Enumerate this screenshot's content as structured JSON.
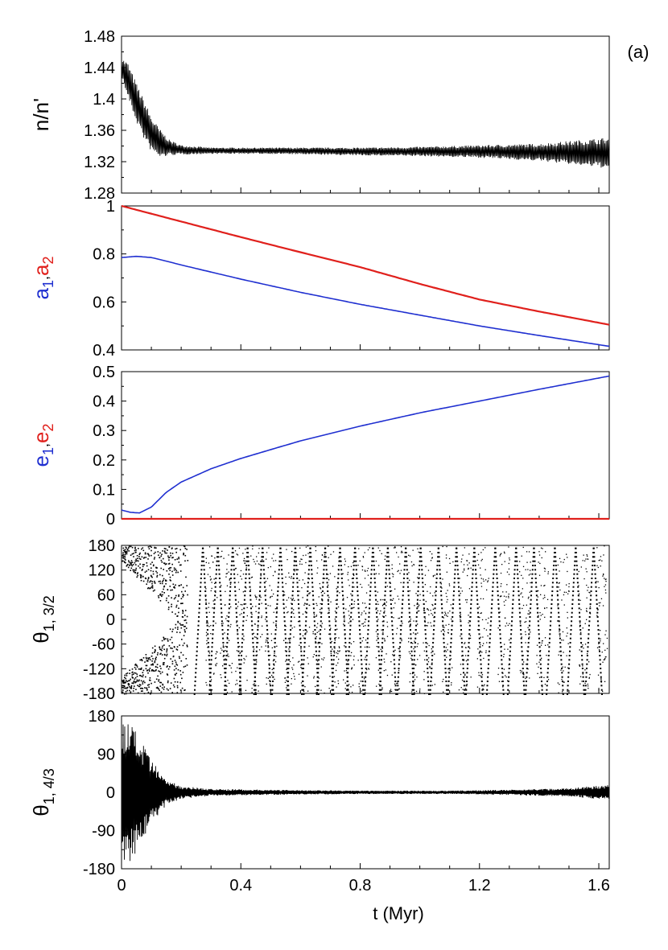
{
  "panel_label": "(a)",
  "x_axis": {
    "label": "t (Myr)",
    "ticks": [
      "0",
      "0.4",
      "0.8",
      "1.2",
      "1.6"
    ]
  },
  "colors": {
    "ink": "#000000",
    "blue": "#1f2fd0",
    "red": "#e0201c"
  },
  "chart_data": [
    {
      "type": "line",
      "ylabel": "n/n'",
      "ylim": [
        1.28,
        1.48
      ],
      "xlim": [
        0,
        1.635
      ],
      "yticks": [
        "1.28",
        "1.32",
        "1.36",
        "1.4",
        "1.44",
        "1.48"
      ],
      "series": [
        {
          "color": "#000000",
          "style": "dense-oscillation",
          "x": [
            0,
            0.02,
            0.05,
            0.08,
            0.1,
            0.13,
            0.16,
            0.2,
            0.3,
            0.5,
            0.8,
            1.0,
            1.2,
            1.4,
            1.635
          ],
          "center": [
            1.44,
            1.425,
            1.395,
            1.37,
            1.355,
            1.343,
            1.338,
            1.335,
            1.334,
            1.334,
            1.333,
            1.333,
            1.333,
            1.332,
            1.331
          ],
          "amplitude": [
            0.012,
            0.022,
            0.025,
            0.025,
            0.022,
            0.018,
            0.01,
            0.006,
            0.004,
            0.004,
            0.005,
            0.006,
            0.008,
            0.011,
            0.02
          ]
        }
      ]
    },
    {
      "type": "line",
      "ylabel": "a1,a2",
      "ylim": [
        0.4,
        1.0
      ],
      "xlim": [
        0,
        1.635
      ],
      "yticks": [
        "0.4",
        "0.6",
        "0.8",
        "1"
      ],
      "series": [
        {
          "name": "a1",
          "color": "#1f2fd0",
          "x": [
            0,
            0.05,
            0.1,
            0.15,
            0.2,
            0.4,
            0.6,
            0.8,
            1.0,
            1.2,
            1.4,
            1.635
          ],
          "y": [
            0.785,
            0.79,
            0.785,
            0.77,
            0.754,
            0.695,
            0.64,
            0.59,
            0.545,
            0.5,
            0.46,
            0.415
          ]
        },
        {
          "name": "a2",
          "color": "#e0201c",
          "x": [
            0,
            0.2,
            0.4,
            0.6,
            0.8,
            1.0,
            1.2,
            1.4,
            1.635
          ],
          "y": [
            1.0,
            0.935,
            0.87,
            0.807,
            0.745,
            0.675,
            0.61,
            0.56,
            0.505
          ]
        }
      ]
    },
    {
      "type": "line",
      "ylabel": "e1,e2",
      "ylim": [
        0,
        0.5
      ],
      "xlim": [
        0,
        1.635
      ],
      "yticks": [
        "0",
        "0.1",
        "0.2",
        "0.3",
        "0.4",
        "0.5"
      ],
      "series": [
        {
          "name": "e1",
          "color": "#1f2fd0",
          "x": [
            0,
            0.03,
            0.06,
            0.1,
            0.15,
            0.2,
            0.3,
            0.4,
            0.6,
            0.8,
            1.0,
            1.2,
            1.4,
            1.635
          ],
          "y": [
            0.03,
            0.022,
            0.02,
            0.04,
            0.09,
            0.125,
            0.17,
            0.205,
            0.265,
            0.315,
            0.36,
            0.4,
            0.44,
            0.485
          ]
        },
        {
          "name": "e2",
          "color": "#e0201c",
          "x": [
            0,
            1.635
          ],
          "y": [
            0.0,
            0.0
          ]
        }
      ]
    },
    {
      "type": "scatter",
      "ylabel": "θ1, 3/2",
      "ylim": [
        -180,
        180
      ],
      "xlim": [
        0,
        1.635
      ],
      "yticks": [
        "-180",
        "-120",
        "-60",
        "0",
        "60",
        "120",
        "180"
      ],
      "series": [
        {
          "color": "#000000",
          "style": "circulating-angle-dots",
          "x": [
            0,
            0.2,
            0.4,
            0.6,
            0.8,
            1.0,
            1.2,
            1.4,
            1.635
          ],
          "y": [
            180,
            -180,
            180,
            -180,
            180,
            -180,
            180,
            -180,
            180
          ]
        }
      ]
    },
    {
      "type": "line",
      "ylabel": "θ1, 4/3",
      "ylim": [
        -180,
        180
      ],
      "xlim": [
        0,
        1.635
      ],
      "yticks": [
        "-180",
        "-90",
        "0",
        "90",
        "180"
      ],
      "series": [
        {
          "color": "#000000",
          "style": "dense-libration",
          "x": [
            0,
            0.03,
            0.06,
            0.1,
            0.15,
            0.2,
            0.3,
            0.5,
            0.8,
            1.1,
            1.3,
            1.5,
            1.635
          ],
          "amplitude": [
            170,
            165,
            130,
            75,
            30,
            15,
            8,
            6,
            4,
            4,
            6,
            10,
            18
          ]
        }
      ]
    }
  ]
}
